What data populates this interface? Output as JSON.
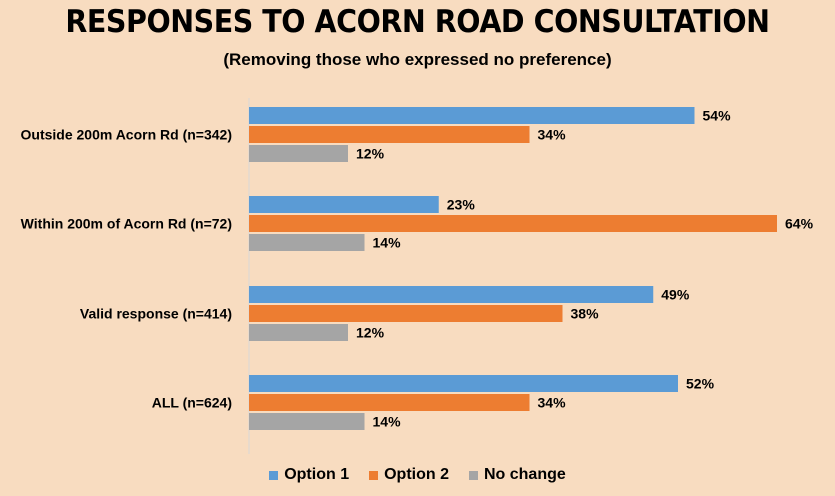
{
  "colors": {
    "background": "#F8DCC0",
    "option1": "#5B9BD5",
    "option2": "#ED7D31",
    "no_change": "#A5A5A5",
    "axis": "#D9D9D9"
  },
  "chart_data": {
    "type": "bar",
    "orientation": "horizontal",
    "title": "RESPONSES TO ACORN ROAD CONSULTATION",
    "subtitle": "(Removing those who expressed no preference)",
    "categories": [
      "Outside 200m Acorn Rd (n=342)",
      "Within 200m of Acorn Rd (n=72)",
      "Valid response (n=414)",
      "ALL (n=624)"
    ],
    "series": [
      {
        "name": "Option 1",
        "color": "#5B9BD5",
        "values": [
          54,
          23,
          49,
          52
        ]
      },
      {
        "name": "Option 2",
        "color": "#ED7D31",
        "values": [
          34,
          64,
          38,
          34
        ]
      },
      {
        "name": "No change",
        "color": "#A5A5A5",
        "values": [
          12,
          14,
          12,
          14
        ]
      }
    ],
    "value_suffix": "%",
    "xlim": [
      0,
      70
    ],
    "grid": false,
    "legend": "bottom"
  }
}
